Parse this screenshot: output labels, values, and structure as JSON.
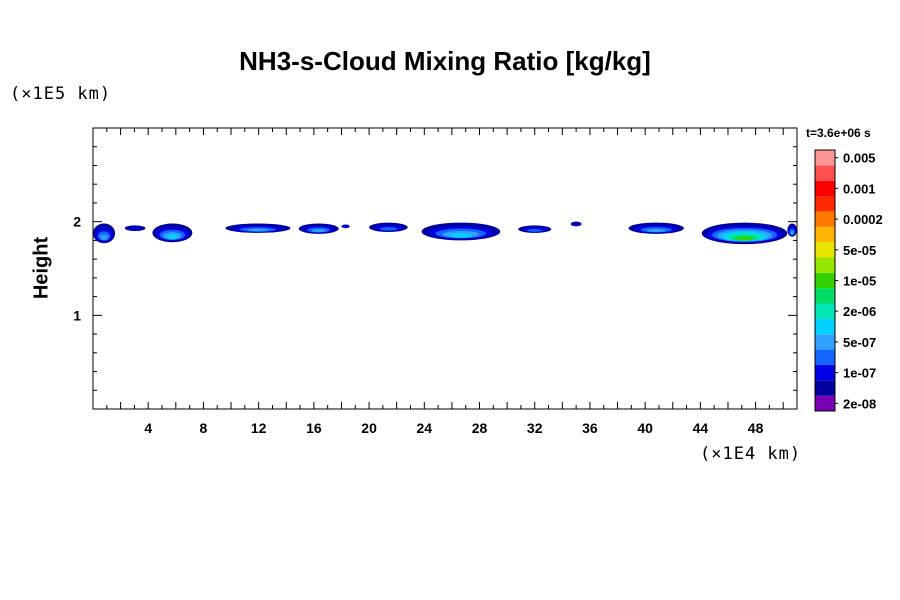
{
  "chart_data": {
    "type": "heatmap",
    "title": "NH3-s-Cloud Mixing Ratio [kg/kg]",
    "ylabel": "Height",
    "y_unit": "(×1E5 km)",
    "x_unit": "(×1E4 km)",
    "timestamp": "t=3.6e+06 s",
    "xlim": [
      0,
      51
    ],
    "ylim": [
      0,
      3
    ],
    "x_ticks": [
      4,
      8,
      12,
      16,
      20,
      24,
      28,
      32,
      36,
      40,
      44,
      48
    ],
    "y_ticks": [
      1,
      2
    ],
    "grid": false,
    "colorbar": {
      "colors": [
        "#7a00b4",
        "#0000a0",
        "#0000e6",
        "#1464ff",
        "#2ea0ff",
        "#00d2ff",
        "#00e6b4",
        "#00dc64",
        "#32d200",
        "#96e600",
        "#e6e600",
        "#ffb400",
        "#ff7800",
        "#ff2800",
        "#ff0000",
        "#ff5050",
        "#ff9696"
      ],
      "labels": [
        "2e-08",
        "1e-07",
        "5e-07",
        "2e-06",
        "1e-05",
        "5e-05",
        "0.0002",
        "0.001",
        "0.005"
      ]
    },
    "cloud_patches": [
      {
        "x": [
          0.0,
          1.6
        ],
        "y": [
          1.77,
          1.98
        ],
        "max_level": 4
      },
      {
        "x": [
          2.3,
          3.8
        ],
        "y": [
          1.9,
          1.96
        ],
        "max_level": 2
      },
      {
        "x": [
          4.3,
          7.2
        ],
        "y": [
          1.78,
          1.98
        ],
        "max_level": 5
      },
      {
        "x": [
          9.6,
          14.3
        ],
        "y": [
          1.88,
          1.98
        ],
        "max_level": 4
      },
      {
        "x": [
          14.9,
          17.8
        ],
        "y": [
          1.87,
          1.98
        ],
        "max_level": 4
      },
      {
        "x": [
          18.0,
          18.6
        ],
        "y": [
          1.93,
          1.97
        ],
        "max_level": 2
      },
      {
        "x": [
          20.0,
          22.8
        ],
        "y": [
          1.89,
          1.99
        ],
        "max_level": 3
      },
      {
        "x": [
          23.8,
          29.5
        ],
        "y": [
          1.8,
          1.99
        ],
        "max_level": 5
      },
      {
        "x": [
          30.8,
          33.2
        ],
        "y": [
          1.88,
          1.96
        ],
        "max_level": 3
      },
      {
        "x": [
          34.6,
          35.4
        ],
        "y": [
          1.95,
          2.0
        ],
        "max_level": 2
      },
      {
        "x": [
          38.8,
          42.8
        ],
        "y": [
          1.87,
          1.99
        ],
        "max_level": 4
      },
      {
        "x": [
          44.1,
          50.3
        ],
        "y": [
          1.76,
          1.99
        ],
        "max_level": 8
      },
      {
        "x": [
          50.3,
          51.0
        ],
        "y": [
          1.84,
          1.98
        ],
        "max_level": 4
      }
    ]
  }
}
